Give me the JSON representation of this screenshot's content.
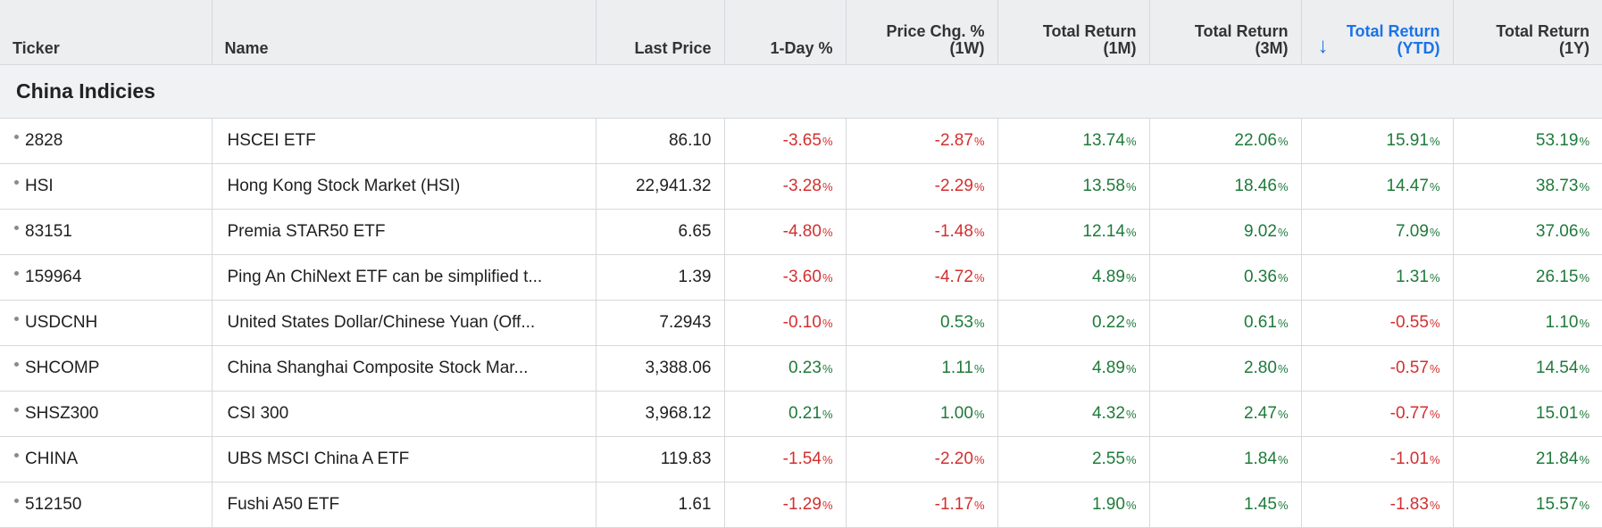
{
  "columns": {
    "ticker": "Ticker",
    "name": "Name",
    "last_price": "Last Price",
    "day": "1-Day %",
    "week_line1": "Price Chg. %",
    "week_line2": "(1W)",
    "m1_line1": "Total Return",
    "m1_line2": "(1M)",
    "m3_line1": "Total Return",
    "m3_line2": "(3M)",
    "ytd_line1": "Total Return",
    "ytd_line2": "(YTD)",
    "y1_line1": "Total Return",
    "y1_line2": "(1Y)",
    "sort_arrow": "↓"
  },
  "group_label": "China Indicies",
  "rows": [
    {
      "ticker": "2828",
      "name": "HSCEI ETF",
      "last": "86.10",
      "day": "-3.65",
      "w": "-2.87",
      "m1": "13.74",
      "m3": "22.06",
      "ytd": "15.91",
      "y1": "53.19"
    },
    {
      "ticker": "HSI",
      "name": "Hong Kong Stock Market (HSI)",
      "last": "22,941.32",
      "day": "-3.28",
      "w": "-2.29",
      "m1": "13.58",
      "m3": "18.46",
      "ytd": "14.47",
      "y1": "38.73"
    },
    {
      "ticker": "83151",
      "name": "Premia STAR50 ETF",
      "last": "6.65",
      "day": "-4.80",
      "w": "-1.48",
      "m1": "12.14",
      "m3": "9.02",
      "ytd": "7.09",
      "y1": "37.06"
    },
    {
      "ticker": "159964",
      "name": "Ping An ChiNext ETF can be simplified t...",
      "last": "1.39",
      "day": "-3.60",
      "w": "-4.72",
      "m1": "4.89",
      "m3": "0.36",
      "ytd": "1.31",
      "y1": "26.15"
    },
    {
      "ticker": "USDCNH",
      "name": "United States Dollar/Chinese Yuan (Off...",
      "last": "7.2943",
      "day": "-0.10",
      "w": "0.53",
      "m1": "0.22",
      "m3": "0.61",
      "ytd": "-0.55",
      "y1": "1.10"
    },
    {
      "ticker": "SHCOMP",
      "name": "China Shanghai Composite Stock Mar...",
      "last": "3,388.06",
      "day": "0.23",
      "w": "1.11",
      "m1": "4.89",
      "m3": "2.80",
      "ytd": "-0.57",
      "y1": "14.54"
    },
    {
      "ticker": "SHSZ300",
      "name": "CSI 300",
      "last": "3,968.12",
      "day": "0.21",
      "w": "1.00",
      "m1": "4.32",
      "m3": "2.47",
      "ytd": "-0.77",
      "y1": "15.01"
    },
    {
      "ticker": "CHINA",
      "name": "UBS MSCI China A ETF",
      "last": "119.83",
      "day": "-1.54",
      "w": "-2.20",
      "m1": "2.55",
      "m3": "1.84",
      "ytd": "-1.01",
      "y1": "21.84"
    },
    {
      "ticker": "512150",
      "name": "Fushi A50 ETF",
      "last": "1.61",
      "day": "-1.29",
      "w": "-1.17",
      "m1": "1.90",
      "m3": "1.45",
      "ytd": "-1.83",
      "y1": "15.57"
    }
  ],
  "pct_symbol": "%",
  "colors": {
    "positive": "#1e7a3a",
    "negative": "#d32f2f",
    "accent": "#1a73e8"
  }
}
